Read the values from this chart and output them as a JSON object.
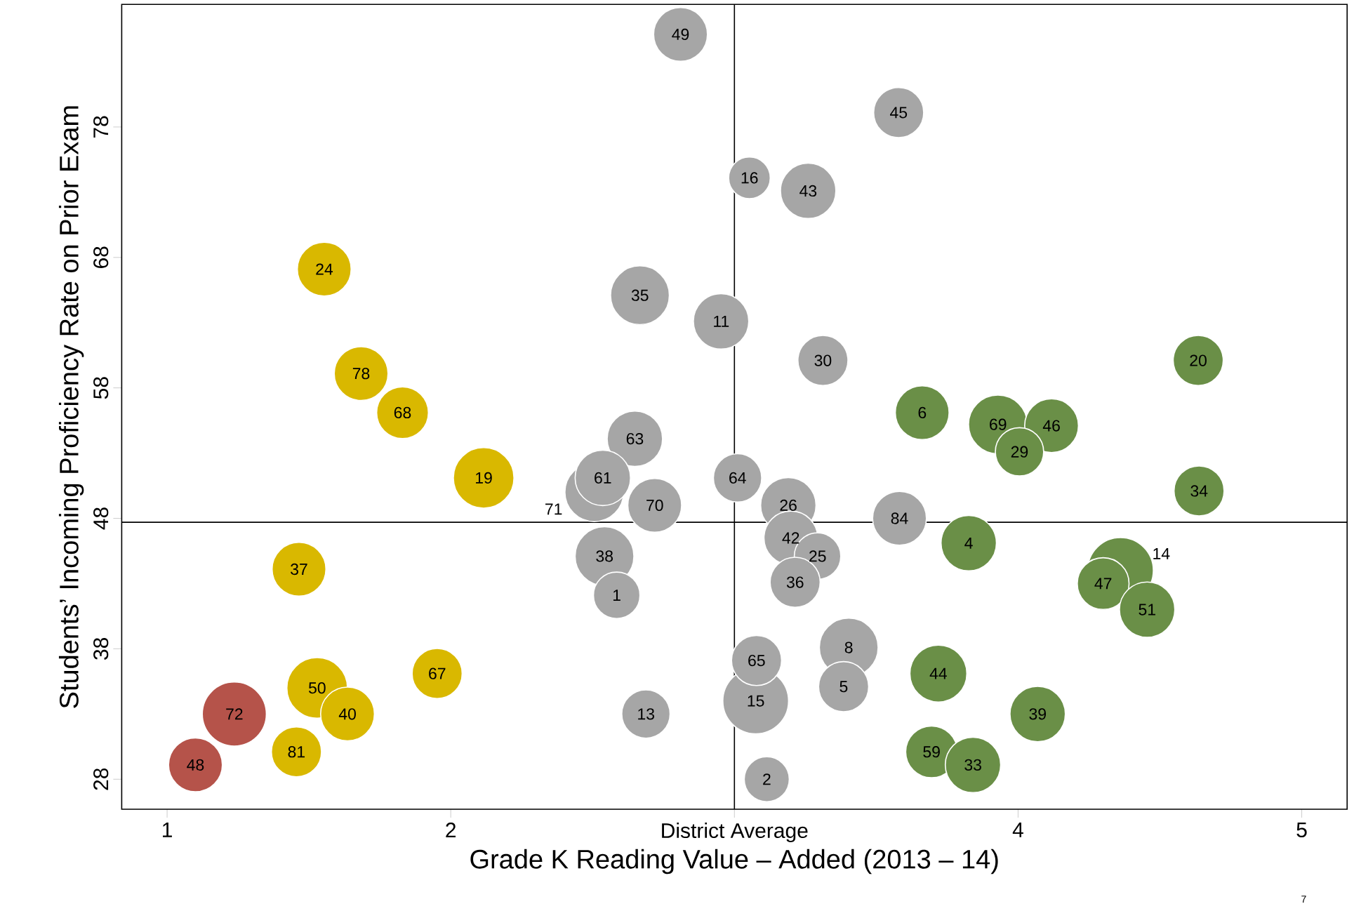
{
  "chart_data": {
    "type": "bubble",
    "xlabel": "Grade K Reading Value – Added (2013 – 14)",
    "ylabel": "Students’ Incoming Proficiency Rate on Prior Exam",
    "xlim": [
      0.84,
      5.16
    ],
    "ylim": [
      25.7,
      87.4
    ],
    "xticks": [
      1,
      2,
      {
        "value": 3,
        "label": "District Average"
      },
      4,
      5
    ],
    "yticks": [
      28,
      38,
      48,
      58,
      68,
      78
    ],
    "grid": false,
    "marker": "circle",
    "ref_lines": [
      {
        "axis": "x",
        "value": 3,
        "color": "#000000"
      },
      {
        "axis": "y",
        "value": 47.7,
        "color": "#000000"
      }
    ],
    "series": [
      {
        "color": "#b5534a",
        "x": [
          1.237,
          1.1
        ],
        "values": [
          33.0,
          29.1
        ],
        "sizes": [
          0.95,
          0.67
        ]
      },
      {
        "color": "#d9b800",
        "x": [
          1.554,
          1.684,
          1.83,
          2.116,
          1.465,
          1.952,
          1.529,
          1.636,
          1.456
        ],
        "values": [
          67.1,
          59.1,
          56.1,
          51.1,
          44.1,
          36.1,
          35.0,
          33.0,
          30.1
        ],
        "sizes": [
          0.67,
          0.67,
          0.62,
          0.85,
          0.67,
          0.58,
          0.85,
          0.67,
          0.58
        ]
      },
      {
        "color": "#a6a6a6",
        "x": [
          2.81,
          3.579,
          3.053,
          3.26,
          2.667,
          2.953,
          3.312,
          2.649,
          3.011,
          2.506,
          2.536,
          2.719,
          3.19,
          3.582,
          3.199,
          3.293,
          2.542,
          3.214,
          2.585,
          3.403,
          3.385,
          3.075,
          3.078,
          2.688,
          3.114
        ],
        "values": [
          85.1,
          79.1,
          74.1,
          73.1,
          65.1,
          63.1,
          60.1,
          54.1,
          51.1,
          50.0,
          51.1,
          49.0,
          49.0,
          48.0,
          46.5,
          45.1,
          45.1,
          43.1,
          42.1,
          38.1,
          35.1,
          34.0,
          37.1,
          33.0,
          28.0
        ],
        "sizes": [
          0.67,
          0.58,
          0.4,
          0.71,
          0.8,
          0.71,
          0.58,
          0.71,
          0.54,
          0.8,
          0.71,
          0.67,
          0.71,
          0.67,
          0.67,
          0.5,
          0.8,
          0.58,
          0.5,
          0.8,
          0.58,
          1.0,
          0.58,
          0.54,
          0.47
        ]
      },
      {
        "color": "#6a8f47",
        "x": [
          4.635,
          3.662,
          3.929,
          4.118,
          4.005,
          4.638,
          3.826,
          4.361,
          4.3,
          4.455,
          3.719,
          4.069,
          3.695,
          3.841
        ],
        "values": [
          60.1,
          56.1,
          55.2,
          55.1,
          53.1,
          50.1,
          46.1,
          44.0,
          43.0,
          41.0,
          36.1,
          33.0,
          30.1,
          29.1
        ],
        "sizes": [
          0.58,
          0.67,
          0.8,
          0.67,
          0.54,
          0.58,
          0.71,
          1.0,
          0.62,
          0.71,
          0.75,
          0.71,
          0.62,
          0.71
        ]
      }
    ],
    "annotations": [
      {
        "text": "72",
        "x": 1.237,
        "y": 33.0
      },
      {
        "text": "48",
        "x": 1.1,
        "y": 29.1
      },
      {
        "text": "24",
        "x": 1.554,
        "y": 67.1
      },
      {
        "text": "78",
        "x": 1.684,
        "y": 59.1
      },
      {
        "text": "68",
        "x": 1.83,
        "y": 56.1
      },
      {
        "text": "19",
        "x": 2.116,
        "y": 51.1
      },
      {
        "text": "37",
        "x": 1.465,
        "y": 44.1
      },
      {
        "text": "67",
        "x": 1.952,
        "y": 36.1
      },
      {
        "text": "50",
        "x": 1.529,
        "y": 35.0
      },
      {
        "text": "40",
        "x": 1.636,
        "y": 33.0
      },
      {
        "text": "81",
        "x": 1.456,
        "y": 30.1
      },
      {
        "text": "49",
        "x": 2.81,
        "y": 85.1
      },
      {
        "text": "45",
        "x": 3.579,
        "y": 79.1
      },
      {
        "text": "16",
        "x": 3.053,
        "y": 74.1
      },
      {
        "text": "43",
        "x": 3.26,
        "y": 73.1
      },
      {
        "text": "35",
        "x": 2.667,
        "y": 65.1
      },
      {
        "text": "11",
        "x": 2.953,
        "y": 63.1
      },
      {
        "text": "30",
        "x": 3.312,
        "y": 60.1
      },
      {
        "text": "63",
        "x": 2.649,
        "y": 54.1
      },
      {
        "text": "64",
        "x": 3.011,
        "y": 51.1
      },
      {
        "text": "71",
        "x": 2.506,
        "y": 50.0
      },
      {
        "text": "61",
        "x": 2.536,
        "y": 51.1
      },
      {
        "text": "70",
        "x": 2.719,
        "y": 49.0
      },
      {
        "text": "26",
        "x": 3.19,
        "y": 49.0
      },
      {
        "text": "84",
        "x": 3.582,
        "y": 48.0
      },
      {
        "text": "42",
        "x": 3.199,
        "y": 46.5
      },
      {
        "text": "25",
        "x": 3.293,
        "y": 45.1
      },
      {
        "text": "38",
        "x": 2.542,
        "y": 45.1
      },
      {
        "text": "36",
        "x": 3.214,
        "y": 43.1
      },
      {
        "text": "1",
        "x": 2.585,
        "y": 42.1
      },
      {
        "text": "8",
        "x": 3.403,
        "y": 38.1
      },
      {
        "text": "5",
        "x": 3.385,
        "y": 35.1
      },
      {
        "text": "15",
        "x": 3.075,
        "y": 34.0
      },
      {
        "text": "65",
        "x": 3.078,
        "y": 37.1
      },
      {
        "text": "13",
        "x": 2.688,
        "y": 33.0
      },
      {
        "text": "2",
        "x": 3.114,
        "y": 28.0
      },
      {
        "text": "20",
        "x": 4.635,
        "y": 60.1
      },
      {
        "text": "6",
        "x": 3.662,
        "y": 56.1
      },
      {
        "text": "69",
        "x": 3.929,
        "y": 55.2
      },
      {
        "text": "46",
        "x": 4.118,
        "y": 55.1
      },
      {
        "text": "29",
        "x": 4.005,
        "y": 53.1
      },
      {
        "text": "34",
        "x": 4.638,
        "y": 50.1
      },
      {
        "text": "4",
        "x": 3.826,
        "y": 46.1
      },
      {
        "text": "14",
        "x": 4.361,
        "y": 44.0
      },
      {
        "text": "47",
        "x": 4.3,
        "y": 43.0
      },
      {
        "text": "51",
        "x": 4.455,
        "y": 41.0
      },
      {
        "text": "44",
        "x": 3.719,
        "y": 36.1
      },
      {
        "text": "39",
        "x": 4.069,
        "y": 33.0
      },
      {
        "text": "59",
        "x": 3.695,
        "y": 30.1
      },
      {
        "text": "33",
        "x": 3.841,
        "y": 29.1
      },
      "7"
    ]
  }
}
